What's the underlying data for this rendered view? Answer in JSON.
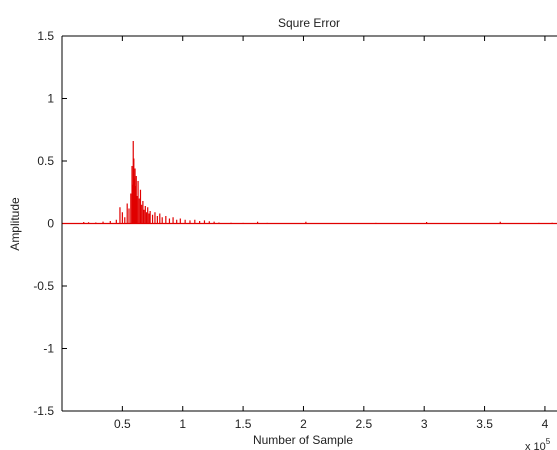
{
  "chart_data": {
    "type": "line",
    "title": "Squre Error",
    "xlabel": "Number of Sample",
    "ylabel": "Amplitude",
    "x_multiplier_label": "x 10",
    "x_multiplier_exponent": "5",
    "xlim": [
      0,
      4.1
    ],
    "ylim": [
      -1.5,
      1.5
    ],
    "x_ticks": [
      0.5,
      1,
      1.5,
      2,
      2.5,
      3,
      3.5,
      4
    ],
    "x_tick_labels": [
      "0.5",
      "1",
      "1.5",
      "2",
      "2.5",
      "3",
      "3.5",
      "4"
    ],
    "y_ticks": [
      1.5,
      1,
      0.5,
      0,
      -0.5,
      -1,
      -1.5
    ],
    "y_tick_labels": [
      "1.5",
      "1",
      "0.5",
      "0",
      "-0.5",
      "-1",
      "-1.5"
    ],
    "grid": false,
    "series": [
      {
        "color": "#e00000",
        "baseline": 0.0,
        "spikes": [
          {
            "x": 0.02,
            "y": 0.003
          },
          {
            "x": 0.1,
            "y": 0.004
          },
          {
            "x": 0.18,
            "y": 0.012
          },
          {
            "x": 0.22,
            "y": 0.01
          },
          {
            "x": 0.28,
            "y": 0.008
          },
          {
            "x": 0.34,
            "y": 0.015
          },
          {
            "x": 0.4,
            "y": 0.02
          },
          {
            "x": 0.45,
            "y": 0.03
          },
          {
            "x": 0.48,
            "y": 0.13
          },
          {
            "x": 0.5,
            "y": 0.09
          },
          {
            "x": 0.52,
            "y": 0.05
          },
          {
            "x": 0.54,
            "y": 0.16
          },
          {
            "x": 0.555,
            "y": 0.12
          },
          {
            "x": 0.57,
            "y": 0.24
          },
          {
            "x": 0.58,
            "y": 0.46
          },
          {
            "x": 0.585,
            "y": 0.31
          },
          {
            "x": 0.59,
            "y": 0.66
          },
          {
            "x": 0.595,
            "y": 0.52
          },
          {
            "x": 0.6,
            "y": 0.36
          },
          {
            "x": 0.605,
            "y": 0.44
          },
          {
            "x": 0.61,
            "y": 0.3
          },
          {
            "x": 0.615,
            "y": 0.38
          },
          {
            "x": 0.62,
            "y": 0.22
          },
          {
            "x": 0.63,
            "y": 0.34
          },
          {
            "x": 0.64,
            "y": 0.2
          },
          {
            "x": 0.65,
            "y": 0.27
          },
          {
            "x": 0.66,
            "y": 0.15
          },
          {
            "x": 0.67,
            "y": 0.18
          },
          {
            "x": 0.68,
            "y": 0.11
          },
          {
            "x": 0.69,
            "y": 0.14
          },
          {
            "x": 0.7,
            "y": 0.09
          },
          {
            "x": 0.71,
            "y": 0.13
          },
          {
            "x": 0.72,
            "y": 0.08
          },
          {
            "x": 0.73,
            "y": 0.1
          },
          {
            "x": 0.75,
            "y": 0.07
          },
          {
            "x": 0.77,
            "y": 0.09
          },
          {
            "x": 0.79,
            "y": 0.06
          },
          {
            "x": 0.81,
            "y": 0.08
          },
          {
            "x": 0.83,
            "y": 0.05
          },
          {
            "x": 0.86,
            "y": 0.06
          },
          {
            "x": 0.89,
            "y": 0.04
          },
          {
            "x": 0.92,
            "y": 0.05
          },
          {
            "x": 0.95,
            "y": 0.03
          },
          {
            "x": 0.98,
            "y": 0.04
          },
          {
            "x": 1.02,
            "y": 0.03
          },
          {
            "x": 1.06,
            "y": 0.025
          },
          {
            "x": 1.1,
            "y": 0.03
          },
          {
            "x": 1.14,
            "y": 0.02
          },
          {
            "x": 1.18,
            "y": 0.025
          },
          {
            "x": 1.22,
            "y": 0.018
          },
          {
            "x": 1.26,
            "y": 0.015
          },
          {
            "x": 1.3,
            "y": 0.008
          },
          {
            "x": 1.4,
            "y": 0.006
          },
          {
            "x": 1.5,
            "y": 0.005
          },
          {
            "x": 1.62,
            "y": 0.014
          },
          {
            "x": 1.7,
            "y": 0.005
          },
          {
            "x": 1.85,
            "y": 0.004
          },
          {
            "x": 2.02,
            "y": 0.014
          },
          {
            "x": 2.2,
            "y": 0.004
          },
          {
            "x": 2.4,
            "y": 0.004
          },
          {
            "x": 2.6,
            "y": 0.005
          },
          {
            "x": 2.8,
            "y": 0.004
          },
          {
            "x": 3.02,
            "y": 0.012
          },
          {
            "x": 3.2,
            "y": 0.004
          },
          {
            "x": 3.4,
            "y": 0.004
          },
          {
            "x": 3.63,
            "y": 0.014
          },
          {
            "x": 3.8,
            "y": 0.004
          },
          {
            "x": 3.95,
            "y": 0.005
          },
          {
            "x": 4.06,
            "y": 0.006
          }
        ]
      }
    ]
  }
}
